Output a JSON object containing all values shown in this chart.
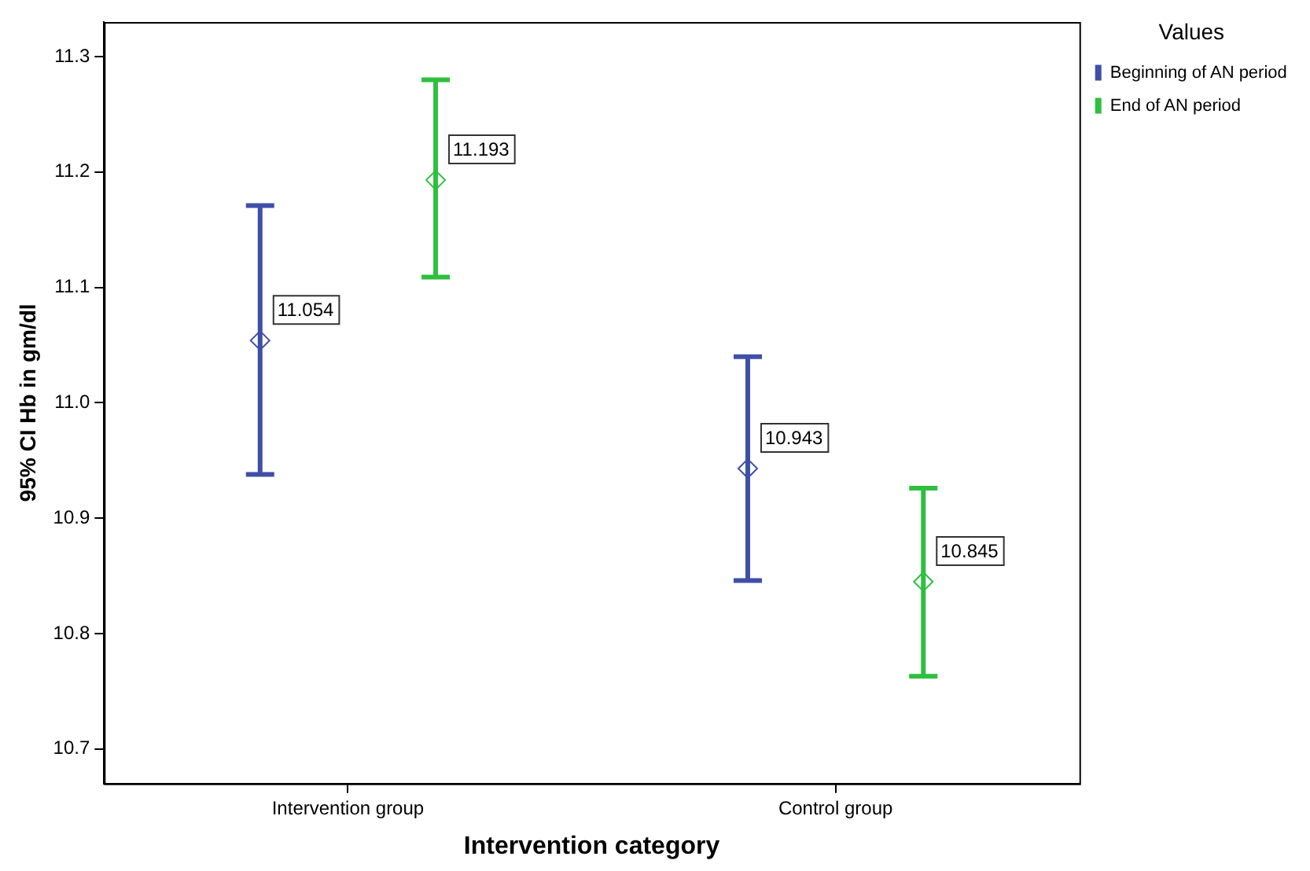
{
  "chart_data": {
    "type": "scatter",
    "xlabel": "Intervention category",
    "ylabel": "95% CI Hb in gm/dl",
    "legend_title": "Values",
    "categories": [
      "Intervention group",
      "Control group"
    ],
    "series": [
      {
        "name": "Beginning of AN period",
        "color": "#3f4fa8",
        "values": [
          11.054,
          10.943
        ],
        "errors": [
          [
            10.938,
            11.171
          ],
          [
            10.846,
            11.04
          ]
        ]
      },
      {
        "name": "End of AN period",
        "color": "#2fbf3f",
        "values": [
          11.193,
          10.845
        ],
        "errors": [
          [
            11.109,
            11.28
          ],
          [
            10.763,
            10.926
          ]
        ]
      }
    ],
    "ylim": [
      10.67,
      11.33
    ],
    "yticks": [
      10.7,
      10.8,
      10.9,
      {
        "value": 11,
        "label": "11.0"
      },
      11.1,
      11.2,
      11.3
    ],
    "marker": "diamond",
    "data_labels": true,
    "legend": "top right",
    "grid": false
  }
}
